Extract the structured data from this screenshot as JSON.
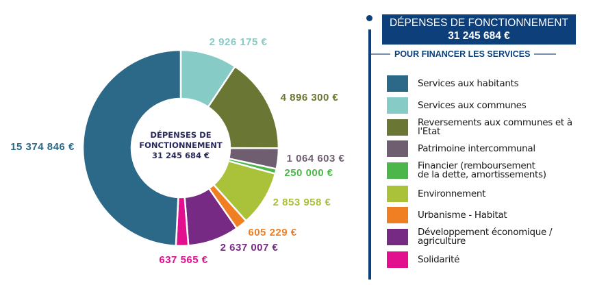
{
  "chart_data": {
    "type": "pie",
    "variant": "donut",
    "title": "DÉPENSES DE FONCTIONNEMENT",
    "total_label": "31 245 684 €",
    "total": 31245684,
    "subtitle": "POUR FINANCER LES SERVICES",
    "center_text": [
      "DÉPENSES DE",
      "FONCTIONNEMENT",
      "31 245 684 €"
    ],
    "start_direction": "12 o'clock, clockwise",
    "legend_position": "right",
    "slices": [
      {
        "name": "Services aux communes",
        "value": 2926175,
        "label": "2 926 175 €",
        "color": "#86cbc6"
      },
      {
        "name": "Reversements aux communes et à l'Etat",
        "value": 4896300,
        "label": "4 896 300 €",
        "color": "#6a7634"
      },
      {
        "name": "Patrimoine intercommunal",
        "value": 1064603,
        "label": "1 064 603 €",
        "color": "#6e5e70"
      },
      {
        "name": "Financier (remboursement de la dette, amortissements)",
        "value": 250000,
        "label": "250 000 €",
        "color": "#4cb64a"
      },
      {
        "name": "Environnement",
        "value": 2853958,
        "label": "2 853 958 €",
        "color": "#a9c23a"
      },
      {
        "name": "Urbanisme - Habitat",
        "value": 605229,
        "label": "605 229 €",
        "color": "#f07f24"
      },
      {
        "name": "Développement économique / agriculture",
        "value": 2637007,
        "label": "2 637 007 €",
        "color": "#772a84"
      },
      {
        "name": "Solidarité",
        "value": 637565,
        "label": "637 565 €",
        "color": "#e2108f"
      },
      {
        "name": "Services aux habitants",
        "value": 15374846,
        "label": "15 374 846 €",
        "color": "#2c6887"
      }
    ]
  },
  "legend": {
    "header_line1": "DÉPENSES DE FONCTIONNEMENT",
    "header_line2": "31 245 684 €",
    "subtitle": "POUR FINANCER LES SERVICES",
    "items": [
      {
        "label": "Services aux habitants",
        "color": "#2c6887"
      },
      {
        "label": "Services aux communes",
        "color": "#86cbc6"
      },
      {
        "label": "Reversements aux communes et à l'Etat",
        "color": "#6a7634"
      },
      {
        "label": "Patrimoine intercommunal",
        "color": "#6e5e70"
      },
      {
        "label": "Financier (remboursement\nde la dette, amortissements)",
        "color": "#4cb64a"
      },
      {
        "label": "Environnement",
        "color": "#a9c23a"
      },
      {
        "label": "Urbanisme - Habitat",
        "color": "#f07f24"
      },
      {
        "label": "Développement économique /\nagriculture",
        "color": "#772a84"
      },
      {
        "label": "Solidarité",
        "color": "#e2108f"
      }
    ]
  },
  "colors": {
    "brand_navy": "#0d3f7a",
    "center_text": "#2a2a5c"
  }
}
